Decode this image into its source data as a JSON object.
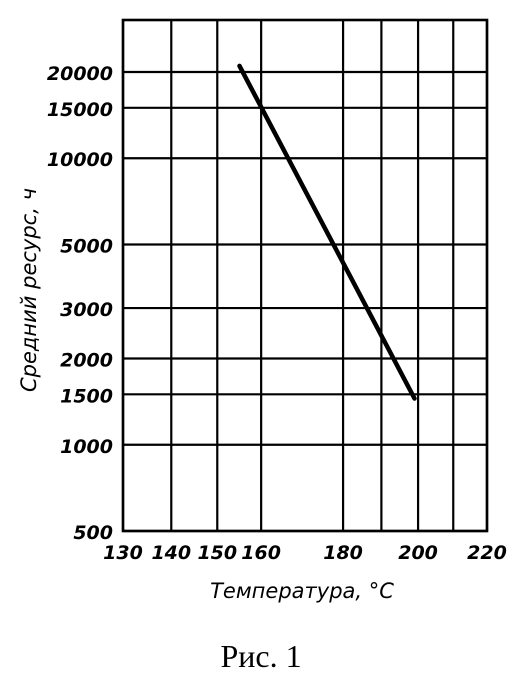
{
  "chart_data": {
    "type": "line",
    "title": "",
    "xlabel": "Температура, °С",
    "ylabel": "Средний ресурс, ч",
    "x_scale": "reciprocal",
    "y_scale": "log",
    "xlim": [
      130,
      220
    ],
    "ylim": [
      500,
      30000
    ],
    "x_ticks": [
      130,
      140,
      150,
      160,
      180,
      190,
      200,
      210,
      220
    ],
    "x_tick_labels": [
      "130",
      "140",
      "150",
      "160",
      "180",
      "200",
      "220"
    ],
    "y_ticks": [
      500,
      1000,
      1500,
      2000,
      3000,
      5000,
      10000,
      15000,
      20000
    ],
    "y_tick_labels": [
      "500",
      "1000",
      "1500",
      "2000",
      "3000",
      "5000",
      "10000",
      "15000",
      "20000"
    ],
    "grid": true,
    "series": [
      {
        "x": [
          155,
          199
        ],
        "y": [
          21000,
          1450
        ]
      }
    ]
  },
  "caption": "Рис. 1"
}
